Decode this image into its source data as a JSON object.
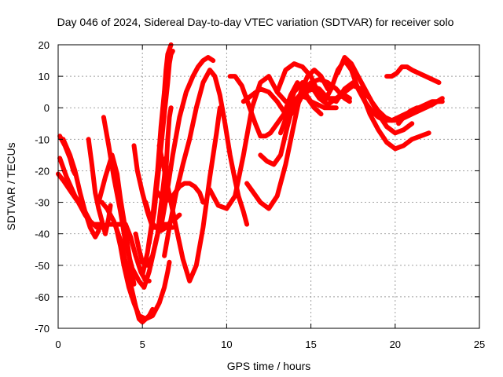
{
  "chart_data": {
    "type": "line",
    "title": "Day 046 of 2024, Sidereal Day-to-day VTEC variation (SDTVAR) for receiver solo",
    "xlabel": "GPS time / hours",
    "ylabel": "SDTVAR / TECUs",
    "xlim": [
      0,
      25
    ],
    "ylim": [
      -70,
      20
    ],
    "xticks": [
      0,
      5,
      10,
      15,
      20,
      25
    ],
    "yticks": [
      -70,
      -60,
      -50,
      -40,
      -30,
      -20,
      -10,
      0,
      10,
      20
    ],
    "xtick_labels": [
      "0",
      "5",
      "10",
      "15",
      "20",
      "25"
    ],
    "ytick_labels": [
      "-70",
      "-60",
      "-50",
      "-40",
      "-30",
      "-20",
      "-10",
      "0",
      "10",
      "20"
    ],
    "grid": true,
    "color": "#ff0000",
    "series": [
      {
        "name": "s1",
        "x": [
          0.0,
          0.3,
          0.8,
          1.2,
          1.6,
          2.0,
          2.5
        ],
        "y": [
          -21,
          -23,
          -27,
          -30,
          -34,
          -37,
          -37
        ]
      },
      {
        "name": "s2",
        "x": [
          0.1,
          0.5,
          1.0,
          1.5,
          1.9,
          2.3,
          2.8
        ],
        "y": [
          -16,
          -22,
          -28,
          -32,
          -36,
          -38,
          -38
        ]
      },
      {
        "name": "s3",
        "x": [
          0.1,
          0.4,
          0.7,
          0.9,
          1.0
        ],
        "y": [
          -9,
          -12,
          -16,
          -20,
          -21
        ]
      },
      {
        "name": "s4",
        "x": [
          0.3,
          0.7,
          1.0,
          1.3,
          1.6,
          1.9,
          2.2,
          2.4
        ],
        "y": [
          -10,
          -15,
          -20,
          -27,
          -33,
          -38,
          -41,
          -39
        ]
      },
      {
        "name": "s5",
        "x": [
          1.8,
          2.0,
          2.2,
          2.4,
          2.7,
          2.8,
          3.0,
          3.1
        ],
        "y": [
          -10,
          -18,
          -27,
          -32,
          -38,
          -40,
          -35,
          -31
        ]
      },
      {
        "name": "s6",
        "x": [
          2.7,
          3.0,
          3.3,
          3.7,
          4.0,
          4.4,
          4.8,
          5.1,
          5.4,
          5.7,
          6.0,
          6.2,
          6.4,
          6.5,
          6.6,
          6.7
        ],
        "y": [
          -3,
          -12,
          -22,
          -33,
          -43,
          -51,
          -55,
          -57,
          -52,
          -45,
          -38,
          -30,
          -20,
          -10,
          -3,
          0
        ]
      },
      {
        "name": "s7",
        "x": [
          2.4,
          2.8,
          3.2,
          3.5,
          3.7,
          4.0,
          4.3,
          4.5
        ],
        "y": [
          -30,
          -22,
          -15,
          -21,
          -29,
          -39,
          -50,
          -56
        ]
      },
      {
        "name": "s8",
        "x": [
          2.6,
          2.9,
          3.3,
          3.7,
          4.0,
          4.3,
          4.6,
          4.8,
          5.0,
          5.2,
          5.4,
          5.6
        ],
        "y": [
          -30,
          -32,
          -36,
          -42,
          -49,
          -56,
          -63,
          -67,
          -68,
          -67,
          -66,
          -64
        ]
      },
      {
        "name": "s9",
        "x": [
          3.4,
          3.7,
          3.9,
          4.2,
          4.5,
          4.8,
          5.2,
          5.6,
          6.0,
          6.3,
          6.5,
          6.6
        ],
        "y": [
          -37,
          -44,
          -50,
          -57,
          -62,
          -66,
          -67,
          -66,
          -62,
          -57,
          -52,
          -49
        ]
      },
      {
        "name": "s10",
        "x": [
          2.9,
          3.2,
          3.6,
          4.0,
          4.3,
          4.6,
          4.9,
          5.2,
          5.4
        ],
        "y": [
          -37,
          -37,
          -37,
          -37,
          -41,
          -47,
          -52,
          -55,
          -55
        ]
      },
      {
        "name": "s11",
        "x": [
          4.6,
          4.8,
          5.0,
          5.3,
          5.6,
          5.9,
          6.1,
          6.3,
          6.4
        ],
        "y": [
          -40,
          -45,
          -49,
          -50,
          -47,
          -40,
          -31,
          -22,
          -16
        ]
      },
      {
        "name": "s12",
        "x": [
          4.5,
          4.7,
          5.0,
          5.3,
          5.6,
          5.9,
          6.1,
          6.3,
          6.5,
          6.7,
          6.8
        ],
        "y": [
          -12,
          -20,
          -27,
          -33,
          -38,
          -38,
          -37,
          -37,
          -37,
          -38,
          -38
        ]
      },
      {
        "name": "s13",
        "x": [
          5.0,
          5.3,
          5.6,
          5.9,
          6.1,
          6.3,
          6.4,
          6.5,
          6.7
        ],
        "y": [
          -53,
          -46,
          -35,
          -20,
          -6,
          5,
          12,
          17,
          20
        ]
      },
      {
        "name": "s14",
        "x": [
          5.4,
          5.7,
          6.0,
          6.3,
          6.5,
          6.6,
          6.7,
          6.8
        ],
        "y": [
          -43,
          -33,
          -18,
          -2,
          8,
          14,
          17,
          18
        ]
      },
      {
        "name": "s15",
        "x": [
          5.2,
          5.5,
          5.8,
          6.1,
          6.4,
          6.7,
          7.0,
          7.2
        ],
        "y": [
          -30,
          -36,
          -38,
          -39,
          -38,
          -36,
          -35,
          -34
        ]
      },
      {
        "name": "s16",
        "x": [
          6.3,
          6.6,
          7.0,
          7.4,
          7.8,
          8.2,
          8.6,
          9.0,
          9.3,
          9.6,
          9.9,
          10.2,
          10.5,
          10.7,
          11.0,
          11.2
        ],
        "y": [
          -47,
          -38,
          -27,
          -18,
          -10,
          0,
          8,
          12,
          10,
          4,
          -5,
          -15,
          -23,
          -28,
          -33,
          -37
        ]
      },
      {
        "name": "s17",
        "x": [
          6.1,
          6.4,
          6.8,
          7.2,
          7.6,
          8.0,
          8.3,
          8.6,
          8.9,
          9.2
        ],
        "y": [
          -38,
          -29,
          -15,
          -3,
          5,
          10,
          13,
          15,
          16,
          15
        ]
      },
      {
        "name": "s18",
        "x": [
          5.8,
          6.3,
          6.8,
          7.2,
          7.5,
          7.8,
          8.1,
          8.4,
          8.6
        ],
        "y": [
          -26,
          -30,
          -28,
          -25,
          -24,
          -24,
          -25,
          -27,
          -30
        ]
      },
      {
        "name": "s19",
        "x": [
          6.0,
          6.5,
          7.0,
          7.4,
          7.8,
          8.2,
          8.6,
          9.0,
          9.4,
          9.6
        ],
        "y": [
          -12,
          -25,
          -38,
          -48,
          -55,
          -50,
          -38,
          -22,
          -8,
          0
        ]
      },
      {
        "name": "s20",
        "x": [
          9.0,
          9.5,
          10.0,
          10.5,
          11.0,
          11.5,
          12.0,
          12.5,
          13.0,
          13.5,
          14.0,
          14.5,
          15.0,
          15.5,
          16.0,
          16.5,
          17.0,
          17.3
        ],
        "y": [
          -26,
          -31,
          -32,
          -28,
          -15,
          0,
          8,
          10,
          5,
          2,
          2,
          5,
          8,
          9,
          8,
          6,
          3,
          2
        ]
      },
      {
        "name": "s21",
        "x": [
          10.2,
          10.5,
          10.9,
          11.3,
          11.7,
          12.0,
          12.3,
          12.6,
          13.0,
          13.4,
          13.8,
          14.2,
          14.6,
          15.0,
          15.4,
          15.8,
          16.2,
          16.5
        ],
        "y": [
          10,
          10,
          7,
          1,
          -5,
          -9,
          -9,
          -8,
          -5,
          -2,
          4,
          8,
          5,
          2,
          1,
          0,
          0,
          0
        ]
      },
      {
        "name": "s22",
        "x": [
          11.2,
          11.6,
          12.0,
          12.5,
          13.0,
          13.5,
          14.0,
          14.4,
          14.8,
          15.2,
          15.6,
          16.0
        ],
        "y": [
          -24,
          -27,
          -30,
          -32,
          -28,
          -18,
          -5,
          5,
          10,
          12,
          10,
          6
        ]
      },
      {
        "name": "s23",
        "x": [
          11.0,
          11.5,
          12.0,
          12.5,
          13.0,
          13.5,
          14.0,
          14.5,
          15.0,
          15.5,
          16.0,
          16.5,
          17.0,
          17.3
        ],
        "y": [
          2,
          4,
          6,
          5,
          2,
          -2,
          0,
          4,
          6,
          5,
          3,
          3,
          4,
          3
        ]
      },
      {
        "name": "s24",
        "x": [
          12.0,
          12.4,
          12.8,
          13.2,
          13.6,
          14.0,
          14.4,
          14.8,
          15.2,
          15.6
        ],
        "y": [
          -15,
          -17,
          -18,
          -15,
          -6,
          2,
          4,
          3,
          0,
          -2
        ]
      },
      {
        "name": "s25",
        "x": [
          13.2,
          13.6,
          14.0,
          14.5,
          15.0,
          15.5,
          16.0,
          16.5,
          17.0,
          17.5,
          18.0,
          18.5,
          19.0,
          19.5,
          20.0,
          20.5,
          21.0
        ],
        "y": [
          -8,
          -2,
          5,
          8,
          7,
          3,
          1,
          3,
          5,
          7,
          6,
          3,
          -2,
          -6,
          -8,
          -7,
          -5
        ]
      },
      {
        "name": "s26",
        "x": [
          13.5,
          14.0,
          14.5,
          15.0,
          15.5,
          16.0,
          16.5,
          17.0,
          17.5,
          18.0,
          18.5,
          19.0,
          19.5,
          20.0,
          20.5,
          21.0,
          21.5,
          22.0
        ],
        "y": [
          -4,
          -1,
          4,
          7,
          6,
          3,
          2,
          6,
          8,
          5,
          -2,
          -7,
          -11,
          -13,
          -12,
          -10,
          -9,
          -8
        ]
      },
      {
        "name": "s27",
        "x": [
          13.0,
          13.5,
          14.0,
          14.5,
          15.0,
          15.5,
          15.8
        ],
        "y": [
          5,
          12,
          14,
          13,
          10,
          4,
          2
        ]
      },
      {
        "name": "s28",
        "x": [
          15.8,
          16.2,
          16.6,
          17.0,
          17.4,
          17.8,
          18.2,
          18.6,
          19.0,
          19.4,
          19.8,
          20.2,
          20.6,
          21.0,
          21.4,
          21.8,
          22.2,
          22.6
        ],
        "y": [
          2,
          6,
          12,
          15,
          12,
          6,
          2,
          -1,
          -3,
          -4,
          -4,
          -3,
          -2,
          -1,
          0,
          1,
          2,
          2
        ]
      },
      {
        "name": "s29",
        "x": [
          16.6,
          17.0,
          17.4,
          17.8,
          18.2,
          18.6,
          19.0,
          19.4,
          19.8,
          20.2,
          20.6,
          21.0,
          21.4,
          21.8,
          22.2,
          22.8
        ],
        "y": [
          11,
          16,
          14,
          10,
          6,
          2,
          -1,
          -3,
          -4,
          -4,
          -3,
          -2,
          -1,
          0,
          1,
          3
        ]
      },
      {
        "name": "s30",
        "x": [
          19.5,
          19.8,
          20.1,
          20.4,
          20.7,
          21.0,
          21.4,
          21.8,
          22.2,
          22.6
        ],
        "y": [
          10,
          10,
          11,
          13,
          13,
          12,
          11,
          10,
          9,
          8
        ]
      },
      {
        "name": "s31",
        "x": [
          20.2,
          20.5,
          20.9,
          21.3,
          21.7,
          22.1,
          22.5,
          22.8
        ],
        "y": [
          -5,
          -3,
          -1,
          0,
          0,
          1,
          2,
          2
        ]
      }
    ]
  }
}
